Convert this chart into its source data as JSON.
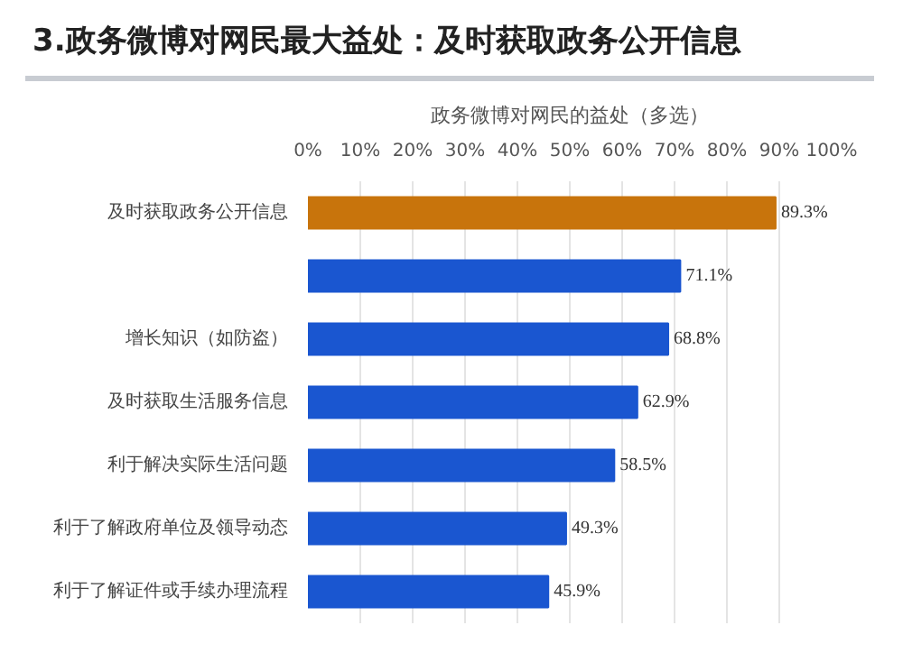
{
  "chart_data": {
    "type": "bar",
    "orientation": "horizontal",
    "title": "3.政务微博对网民最大益处：及时获取政务公开信息",
    "subtitle": "政务微博对网民的益处（多选）",
    "categories": [
      "及时获取政务公开信息",
      null,
      "增长知识（如防盗）",
      "及时获取生活服务信息",
      "利于解决实际生活问题",
      "利于了解政府单位及领导动态",
      "利于了解证件或手续办理流程"
    ],
    "values": [
      89.3,
      71.1,
      68.8,
      62.9,
      58.5,
      49.3,
      45.9
    ],
    "colors": [
      "#c8740c",
      "#1a56d0",
      "#1a56d0",
      "#1a56d0",
      "#1a56d0",
      "#1a56d0",
      "#1a56d0"
    ],
    "value_labels": [
      "89.3%",
      "71.1%",
      "68.8%",
      "62.9%",
      "58.5%",
      "49.3%",
      "45.9%"
    ],
    "xlim": [
      0,
      100
    ],
    "xticks": [
      {
        "value": 0,
        "label": "0%"
      },
      {
        "value": 10,
        "label": "10%"
      },
      {
        "value": 20,
        "label": "20%"
      },
      {
        "value": 30,
        "label": "30%"
      },
      {
        "value": 40,
        "label": "40%"
      },
      {
        "value": 50,
        "label": "50%"
      },
      {
        "value": 60,
        "label": "60%"
      },
      {
        "value": 70,
        "label": "70%"
      },
      {
        "value": 80,
        "label": "80%"
      },
      {
        "value": 90,
        "label": "90%"
      },
      {
        "value": 100,
        "label": "100%"
      }
    ],
    "grid": "x"
  }
}
